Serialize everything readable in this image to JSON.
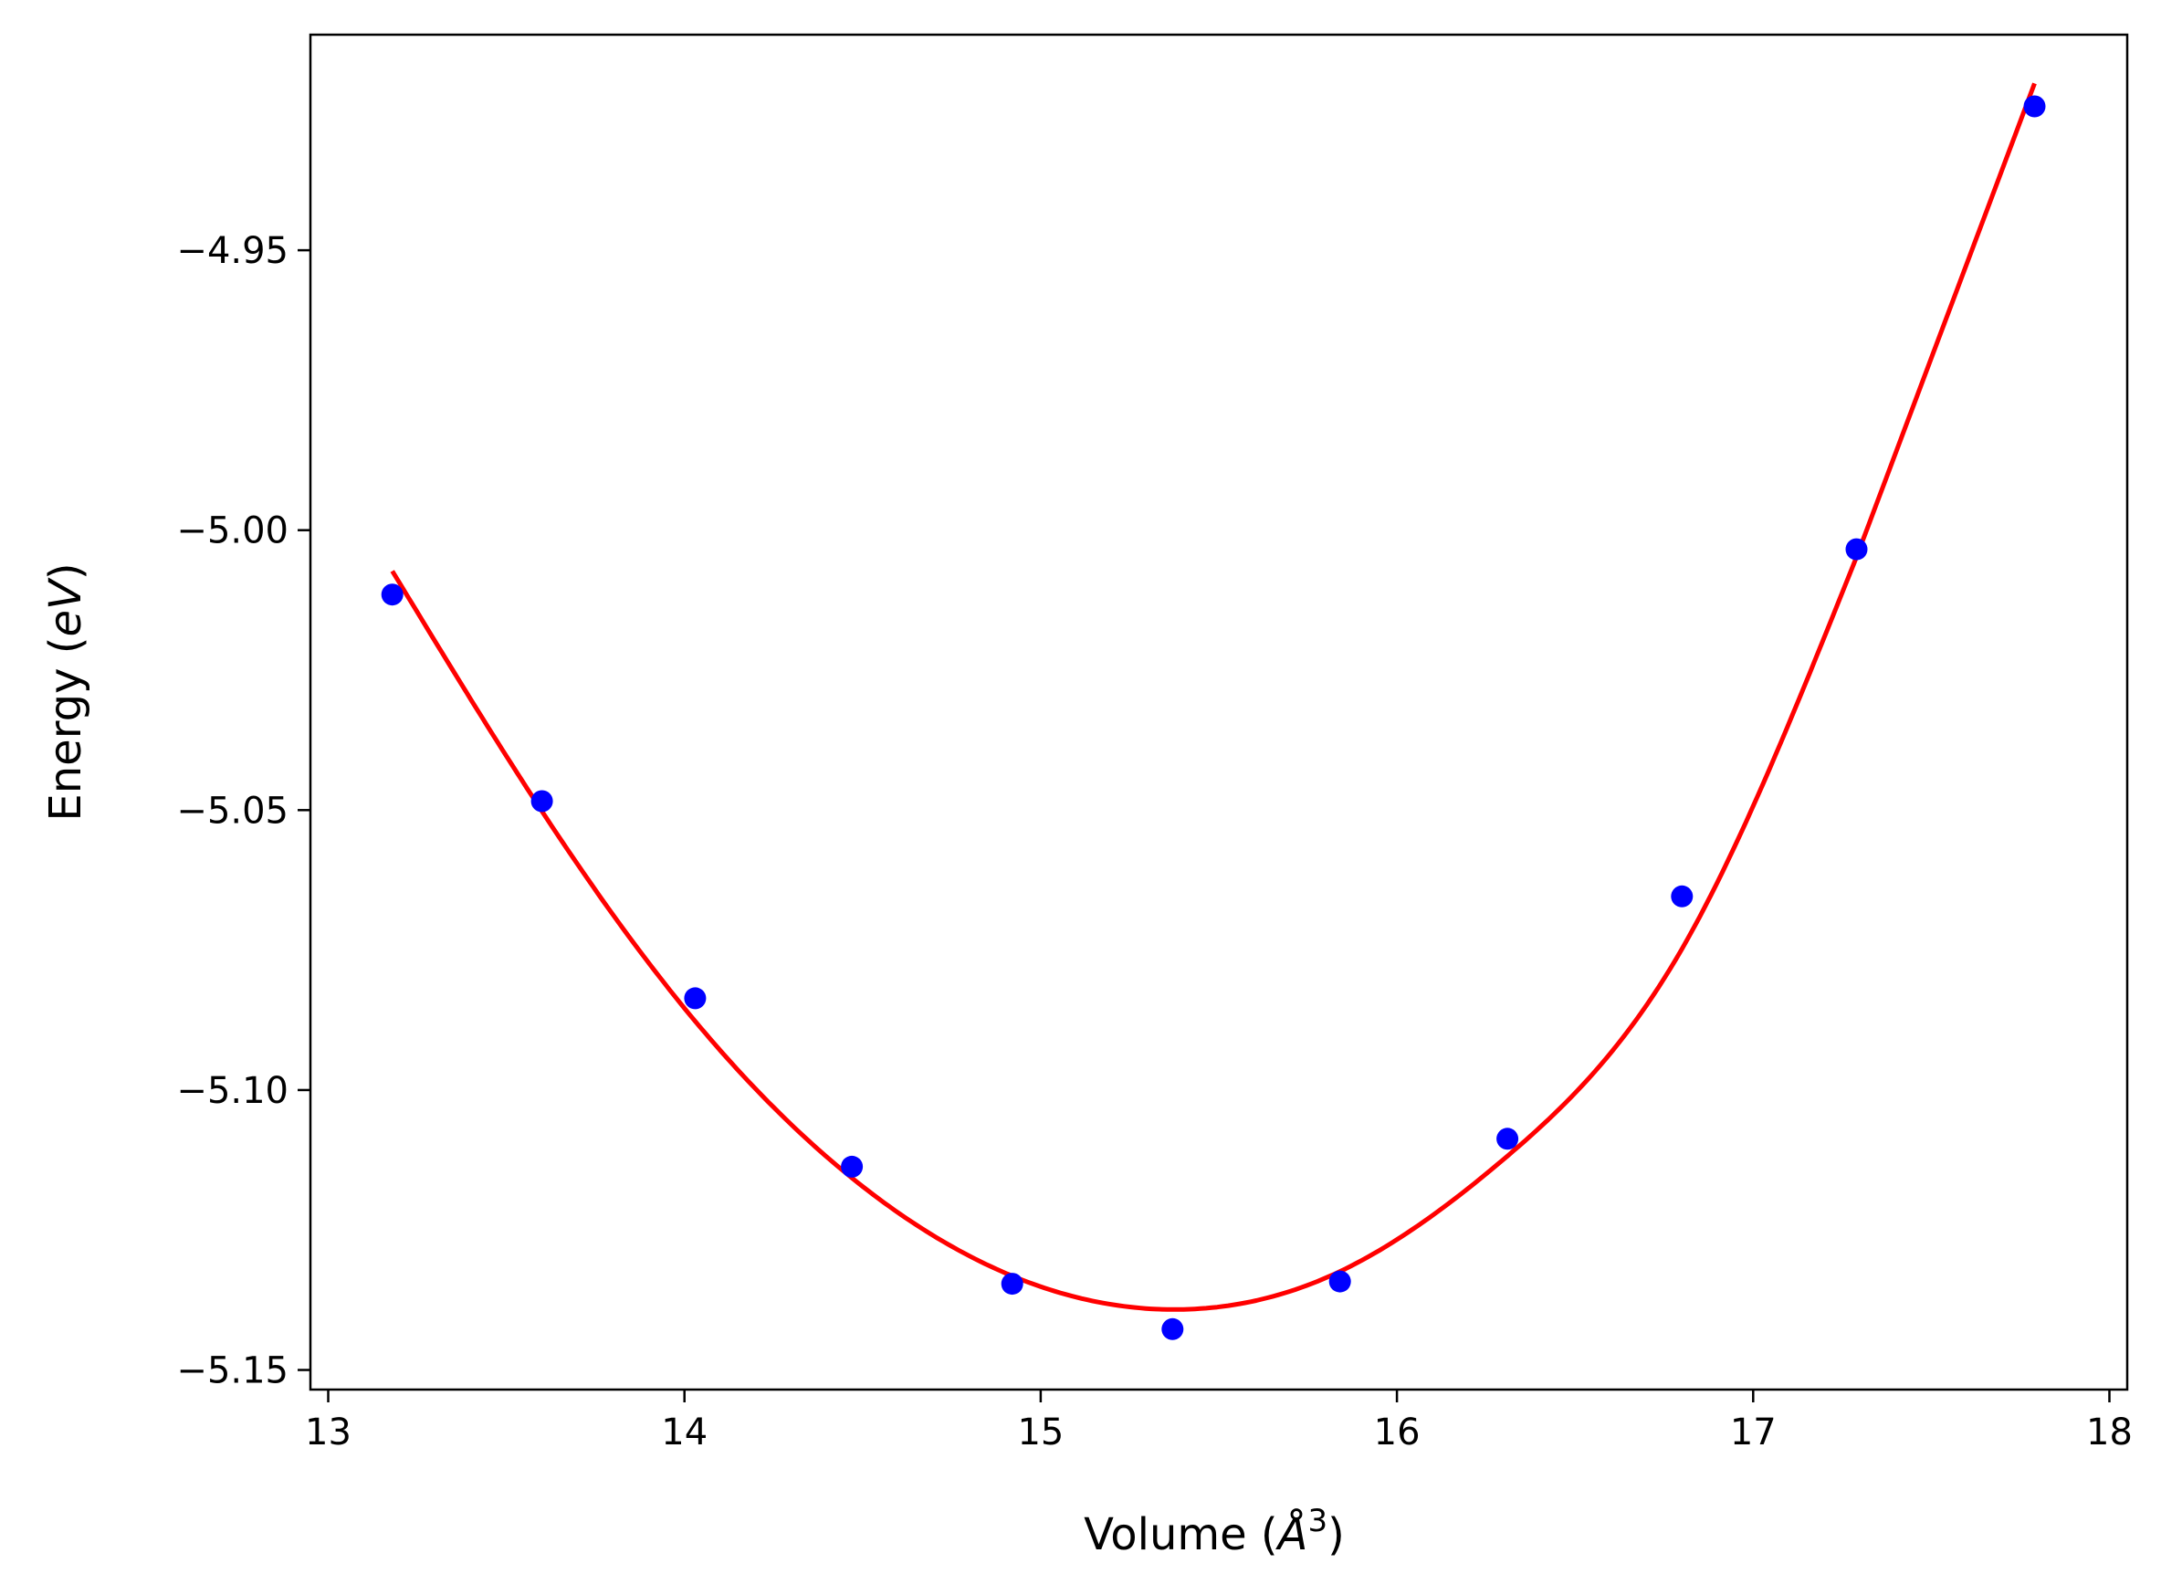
{
  "chart_data": {
    "type": "scatter",
    "title": "",
    "xlabel": {
      "prefix": "Volume (",
      "symbol": "Å",
      "superscript": "3",
      "suffix": ")"
    },
    "ylabel": {
      "prefix": "Energy (",
      "emph": "eV",
      "suffix": ")"
    },
    "xlim": [
      12.95,
      18.05
    ],
    "ylim": [
      -5.1535,
      -4.9115
    ],
    "xticks": [
      13,
      14,
      15,
      16,
      17,
      18
    ],
    "xtick_labels": [
      "13",
      "14",
      "15",
      "16",
      "17",
      "18"
    ],
    "yticks": [
      -5.15,
      -5.1,
      -5.05,
      -5.0,
      -4.95
    ],
    "ytick_labels": [
      "−5.15",
      "−5.10",
      "−5.05",
      "−5.00",
      "−4.95"
    ],
    "grid": false,
    "legend": false,
    "series": [
      {
        "kind": "points",
        "color": "#0000ff",
        "x": [
          13.18,
          13.6,
          14.03,
          14.47,
          14.92,
          15.37,
          15.84,
          16.31,
          16.8,
          17.29,
          17.79
        ],
        "y": [
          -5.0115,
          -5.0484,
          -5.0836,
          -5.1137,
          -5.1346,
          -5.1427,
          -5.1342,
          -5.1087,
          -5.0654,
          -5.0034,
          -4.9243
        ]
      },
      {
        "kind": "fit-curve",
        "color": "#ff0000",
        "x": [
          13.18,
          13.6,
          14.03,
          14.47,
          14.92,
          15.37,
          15.84,
          16.31,
          16.8,
          17.29,
          17.79
        ],
        "y": [
          -5.0073,
          -5.0502,
          -5.0877,
          -5.1157,
          -5.1332,
          -5.1392,
          -5.1324,
          -5.1118,
          -5.0748,
          -5.0048,
          -4.9202
        ]
      }
    ]
  }
}
